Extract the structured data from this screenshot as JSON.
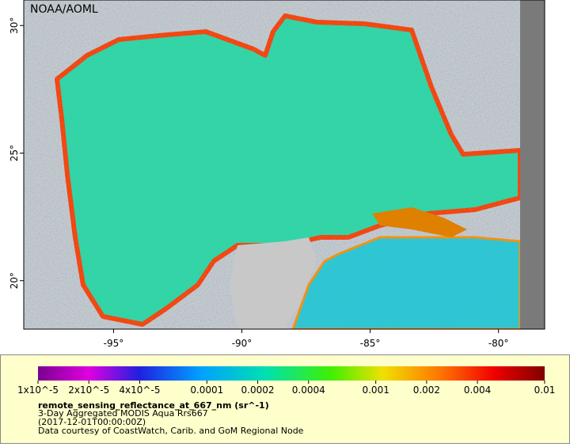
{
  "header": {
    "title": "NOAA/AOML"
  },
  "map": {
    "xlim": [
      -98.5,
      -78.2
    ],
    "ylim": [
      18.1,
      31.0
    ],
    "xticks": [
      {
        "value": -95,
        "label": "-95°"
      },
      {
        "value": -90,
        "label": "-90°"
      },
      {
        "value": -85,
        "label": "-85°"
      },
      {
        "value": -80,
        "label": "-80°"
      }
    ],
    "yticks": [
      {
        "value": 20,
        "label": "20°"
      },
      {
        "value": 25,
        "label": "25°"
      },
      {
        "value": 30,
        "label": "30°"
      }
    ]
  },
  "colorbar": {
    "scale": "log",
    "lim": [
      1e-05,
      0.01
    ],
    "ticks": [
      {
        "value": 1e-05,
        "label": "1x10^-5"
      },
      {
        "value": 2e-05,
        "label": "2x10^-5"
      },
      {
        "value": 4e-05,
        "label": "4x10^-5"
      },
      0.0001,
      0.0002,
      0.0004,
      0.001,
      0.002,
      0.004,
      0.01
    ]
  },
  "caption": {
    "variable": "remote_sensing_reflectance_at_667_nm (sr^-1)",
    "lines": [
      "3-Day Aggregated MODIS Aqua Rrs667",
      "(2017-12-01T00:00:00Z)",
      "Data courtesy of CoastWatch, Carib. and GoM Regional Node"
    ]
  }
}
